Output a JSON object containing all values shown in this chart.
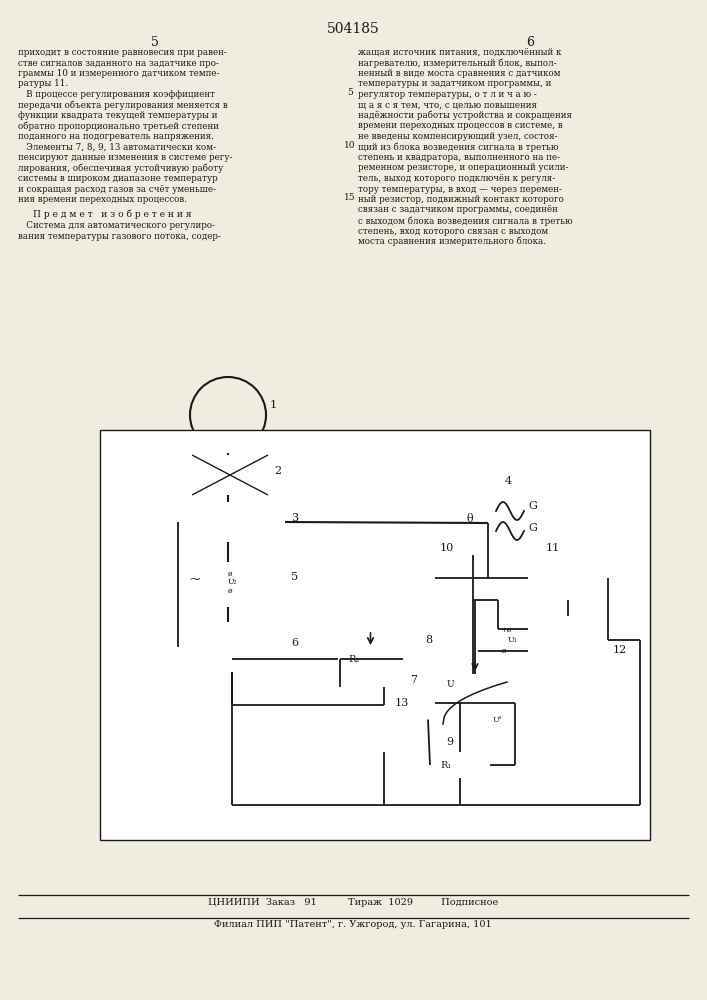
{
  "title": "504185",
  "bg_color": "#f0ece0",
  "line_color": "#1a1a1a",
  "text_color": "#1a1a1a",
  "footer_line1": "ЦНИИПИ  Заказ   91          Тираж  1029         Подписное",
  "footer_line2": "Филиал ПИП \"Патент\", г. Ужгород, ул. Гагарина, 101"
}
